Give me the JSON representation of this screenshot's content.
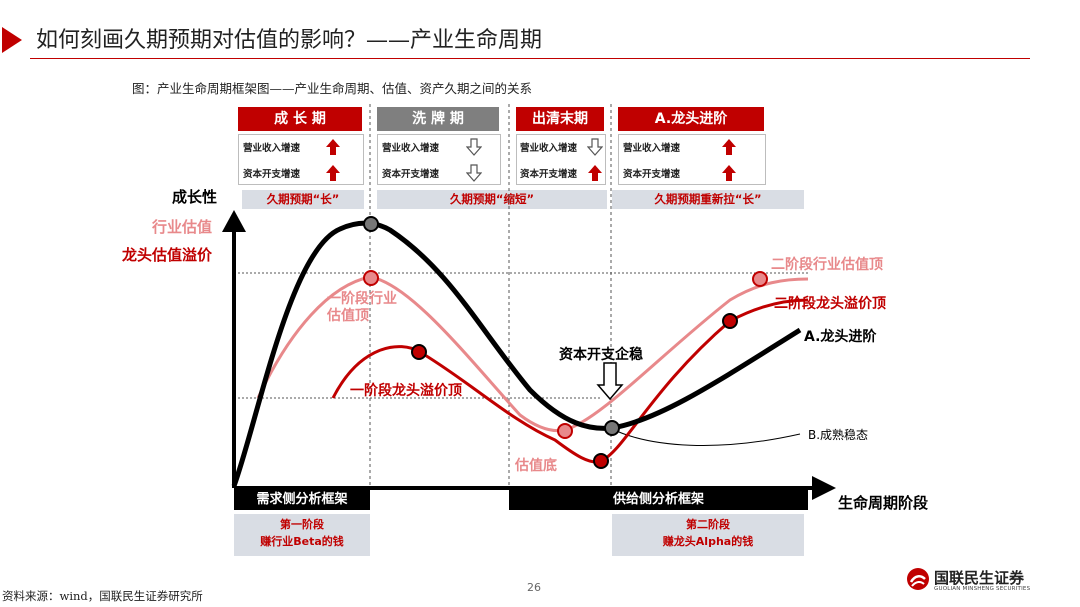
{
  "header": {
    "title": "如何刻画久期预期对估值的影响？——产业生命周期"
  },
  "subtitle": "图：产业生命周期框架图——产业生命周期、估值、资产久期之间的关系",
  "phases": [
    {
      "name": "成 长 期",
      "indicators": [
        {
          "label": "营业收入增速",
          "arrow": "up"
        },
        {
          "label": "资本开支增速",
          "arrow": "up"
        }
      ]
    },
    {
      "name": "洗 牌 期",
      "indicators": [
        {
          "label": "营业收入增速",
          "arrow": "down"
        },
        {
          "label": "资本开支增速",
          "arrow": "down"
        }
      ]
    },
    {
      "name": "出清末期",
      "indicators": [
        {
          "label": "营业收入增速",
          "arrow": "down"
        },
        {
          "label": "资本开支增速",
          "arrow": "up"
        }
      ]
    },
    {
      "name": "A.龙头进阶",
      "indicators": [
        {
          "label": "营业收入增速",
          "arrow": "up"
        },
        {
          "label": "资本开支增速",
          "arrow": "up"
        }
      ]
    }
  ],
  "duration_bands": [
    "久期预期“长”",
    "久期预期“缩短”",
    "久期预期重新拉“长”"
  ],
  "axis": {
    "y_label": "成长性",
    "y_sub1": "行业估值",
    "y_sub2": "龙头估值溢价",
    "x_label": "生命周期阶段"
  },
  "annotations": {
    "stage1_industry_top": "一阶段行业\n估值顶",
    "stage1_premium_top": "一阶段龙头溢价顶",
    "valuation_bottom": "估值底",
    "capex_stable": "资本开支企稳",
    "stage2_industry_top": "二阶段行业估值顶",
    "stage2_premium_top": "二阶段龙头溢价顶",
    "leader_advance": "A.龙头进阶",
    "mature": "B.成熟稳态"
  },
  "frameworks": {
    "demand": {
      "label": "需求侧分析框架",
      "stage": "第一阶段",
      "desc": "赚行业Beta的钱"
    },
    "supply": {
      "label": "供给侧分析框架",
      "stage": "第二阶段",
      "desc": "赚龙头Alpha的钱"
    }
  },
  "footer": {
    "source": "资料来源：wind，国联民生证券研究所",
    "page": "26",
    "logo_text": "国联民生证券",
    "logo_sub": "GUOLIAN MINSHENG SECURITIES"
  },
  "colors": {
    "brand_red": "#c00000",
    "pink": "#e8898b",
    "black": "#000000",
    "band_gray": "#d9dde4"
  }
}
